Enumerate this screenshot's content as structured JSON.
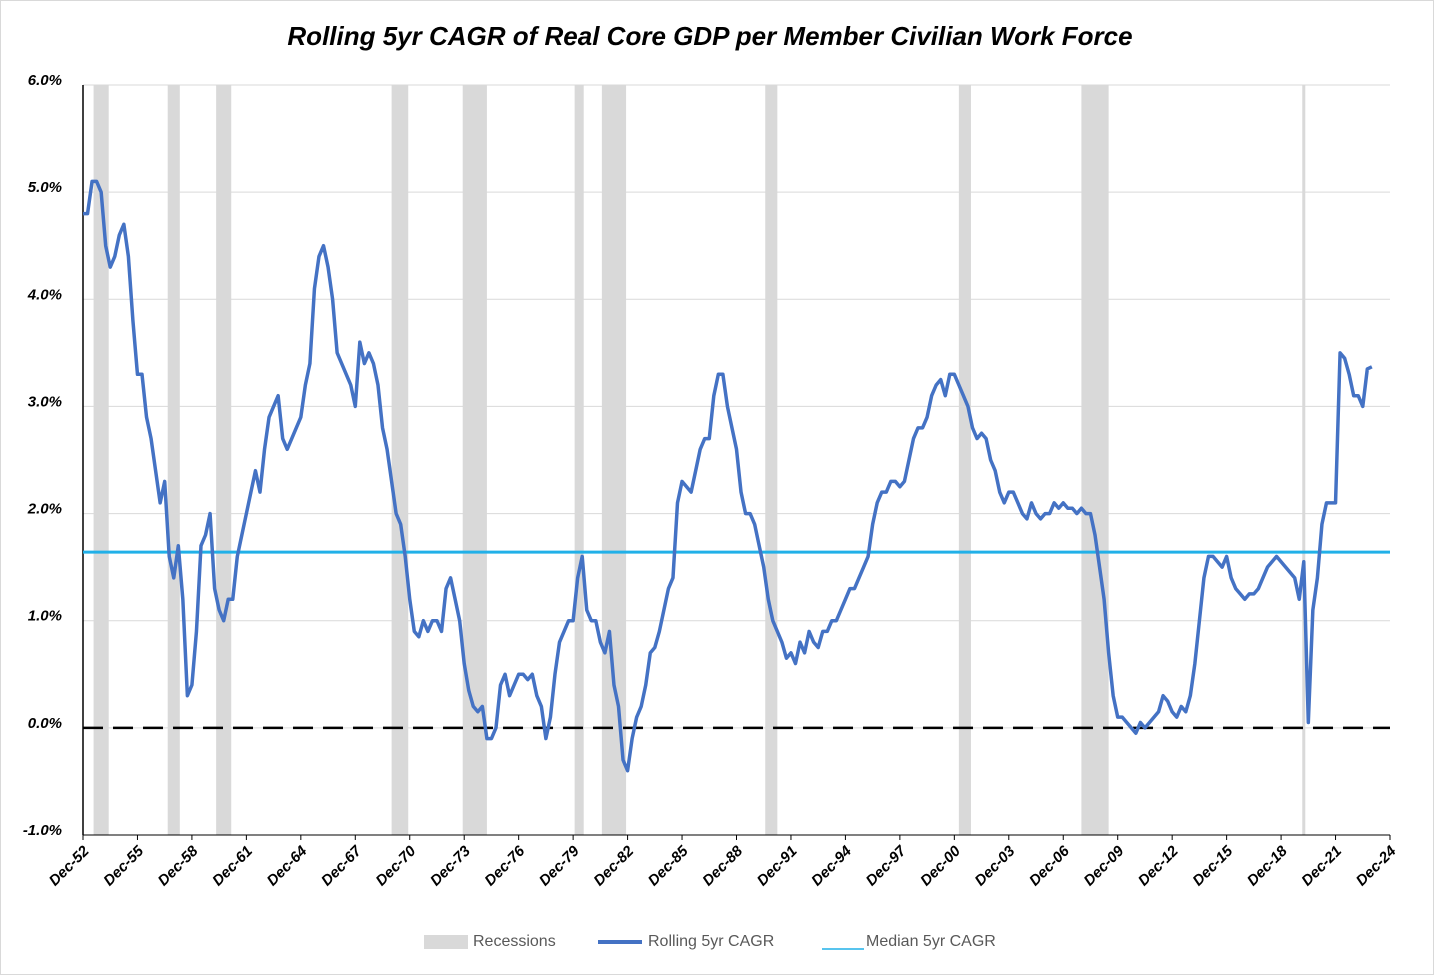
{
  "chart_data": {
    "type": "line",
    "title": "Rolling 5yr CAGR of Real Core GDP per Member Civilian Work Force",
    "x": [
      "Dec-52",
      "Mar-53",
      "Jun-53",
      "Sep-53",
      "Dec-53",
      "Mar-54",
      "Jun-54",
      "Sep-54",
      "Dec-54",
      "Mar-55",
      "Jun-55",
      "Sep-55",
      "Dec-55",
      "Mar-56",
      "Jun-56",
      "Sep-56",
      "Dec-56",
      "Mar-57",
      "Jun-57",
      "Sep-57",
      "Dec-57",
      "Mar-58",
      "Jun-58",
      "Sep-58",
      "Dec-58",
      "Mar-59",
      "Jun-59",
      "Sep-59",
      "Dec-59",
      "Mar-60",
      "Jun-60",
      "Sep-60",
      "Dec-60",
      "Mar-61",
      "Jun-61",
      "Sep-61",
      "Dec-61",
      "Mar-62",
      "Jun-62",
      "Sep-62",
      "Dec-62",
      "Mar-63",
      "Jun-63",
      "Sep-63",
      "Dec-63",
      "Mar-64",
      "Jun-64",
      "Sep-64",
      "Dec-64",
      "Mar-65",
      "Jun-65",
      "Sep-65",
      "Dec-65",
      "Mar-66",
      "Jun-66",
      "Sep-66",
      "Dec-66",
      "Mar-67",
      "Jun-67",
      "Sep-67",
      "Dec-67",
      "Mar-68",
      "Jun-68",
      "Sep-68",
      "Dec-68",
      "Mar-69",
      "Jun-69",
      "Sep-69",
      "Dec-69",
      "Mar-70",
      "Jun-70",
      "Sep-70",
      "Dec-70",
      "Mar-71",
      "Jun-71",
      "Sep-71",
      "Dec-71",
      "Mar-72",
      "Jun-72",
      "Sep-72",
      "Dec-72",
      "Mar-73",
      "Jun-73",
      "Sep-73",
      "Dec-73",
      "Mar-74",
      "Jun-74",
      "Sep-74",
      "Dec-74",
      "Mar-75",
      "Jun-75",
      "Sep-75",
      "Dec-75",
      "Mar-76",
      "Jun-76",
      "Sep-76",
      "Dec-76",
      "Mar-77",
      "Jun-77",
      "Sep-77",
      "Dec-77",
      "Mar-78",
      "Jun-78",
      "Sep-78",
      "Dec-78",
      "Mar-79",
      "Jun-79",
      "Sep-79",
      "Dec-79",
      "Mar-80",
      "Jun-80",
      "Sep-80",
      "Dec-80",
      "Mar-81",
      "Jun-81",
      "Sep-81",
      "Dec-81",
      "Mar-82",
      "Jun-82",
      "Sep-82",
      "Dec-82",
      "Mar-83",
      "Jun-83",
      "Sep-83",
      "Dec-83",
      "Mar-84",
      "Jun-84",
      "Sep-84",
      "Dec-84",
      "Mar-85",
      "Jun-85",
      "Sep-85",
      "Dec-85",
      "Mar-86",
      "Jun-86",
      "Sep-86",
      "Dec-86",
      "Mar-87",
      "Jun-87",
      "Sep-87",
      "Dec-87",
      "Mar-88",
      "Jun-88",
      "Sep-88",
      "Dec-88",
      "Mar-89",
      "Jun-89",
      "Sep-89",
      "Dec-89",
      "Mar-90",
      "Jun-90",
      "Sep-90",
      "Dec-90",
      "Mar-91",
      "Jun-91",
      "Sep-91",
      "Dec-91",
      "Mar-92",
      "Jun-92",
      "Sep-92",
      "Dec-92",
      "Mar-93",
      "Jun-93",
      "Sep-93",
      "Dec-93",
      "Mar-94",
      "Jun-94",
      "Sep-94",
      "Dec-94",
      "Mar-95",
      "Jun-95",
      "Sep-95",
      "Dec-95",
      "Mar-96",
      "Jun-96",
      "Sep-96",
      "Dec-96",
      "Mar-97",
      "Jun-97",
      "Sep-97",
      "Dec-97",
      "Mar-98",
      "Jun-98",
      "Sep-98",
      "Dec-98",
      "Mar-99",
      "Jun-99",
      "Sep-99",
      "Dec-99",
      "Mar-00",
      "Jun-00",
      "Sep-00",
      "Dec-00",
      "Mar-01",
      "Jun-01",
      "Sep-01",
      "Dec-01",
      "Mar-02",
      "Jun-02",
      "Sep-02",
      "Dec-02",
      "Mar-03",
      "Jun-03",
      "Sep-03",
      "Dec-03",
      "Mar-04",
      "Jun-04",
      "Sep-04",
      "Dec-04",
      "Mar-05",
      "Jun-05",
      "Sep-05",
      "Dec-05",
      "Mar-06",
      "Jun-06",
      "Sep-06",
      "Dec-06",
      "Mar-07",
      "Jun-07",
      "Sep-07",
      "Dec-07",
      "Mar-08",
      "Jun-08",
      "Sep-08",
      "Dec-08",
      "Mar-09",
      "Jun-09",
      "Sep-09",
      "Dec-09",
      "Mar-10",
      "Jun-10",
      "Sep-10",
      "Dec-10",
      "Mar-11",
      "Jun-11",
      "Sep-11",
      "Dec-11",
      "Mar-12",
      "Jun-12",
      "Sep-12",
      "Dec-12",
      "Mar-13",
      "Jun-13",
      "Sep-13",
      "Dec-13",
      "Mar-14",
      "Jun-14",
      "Sep-14",
      "Dec-14",
      "Mar-15",
      "Jun-15",
      "Sep-15",
      "Dec-15",
      "Mar-16",
      "Jun-16",
      "Sep-16",
      "Dec-16",
      "Mar-17",
      "Jun-17",
      "Sep-17",
      "Dec-17",
      "Mar-18",
      "Jun-18",
      "Sep-18",
      "Dec-18",
      "Mar-19",
      "Jun-19",
      "Sep-19",
      "Dec-19",
      "Mar-20",
      "Jun-20",
      "Sep-20",
      "Dec-20",
      "Mar-21",
      "Jun-21",
      "Sep-21",
      "Dec-21",
      "Mar-22",
      "Jun-22",
      "Sep-22",
      "Dec-22",
      "Mar-23",
      "Jun-23",
      "Sep-23",
      "Dec-23"
    ],
    "series": [
      {
        "name": "Rolling 5yr CAGR",
        "color": "#4472c4",
        "values": [
          4.8,
          4.8,
          5.1,
          5.1,
          5.0,
          4.5,
          4.3,
          4.4,
          4.6,
          4.7,
          4.4,
          3.8,
          3.3,
          3.3,
          2.9,
          2.7,
          2.4,
          2.1,
          2.3,
          1.6,
          1.4,
          1.7,
          1.2,
          0.3,
          0.4,
          0.9,
          1.7,
          1.8,
          2.0,
          1.3,
          1.1,
          1.0,
          1.2,
          1.2,
          1.6,
          1.8,
          2.0,
          2.2,
          2.4,
          2.2,
          2.6,
          2.9,
          3.0,
          3.1,
          2.7,
          2.6,
          2.7,
          2.8,
          2.9,
          3.2,
          3.4,
          4.1,
          4.4,
          4.5,
          4.3,
          4.0,
          3.5,
          3.4,
          3.3,
          3.2,
          3.0,
          3.6,
          3.4,
          3.5,
          3.4,
          3.2,
          2.8,
          2.6,
          2.3,
          2.0,
          1.9,
          1.6,
          1.2,
          0.9,
          0.85,
          1.0,
          0.9,
          1.0,
          1.0,
          0.9,
          1.3,
          1.4,
          1.2,
          1.0,
          0.6,
          0.35,
          0.2,
          0.15,
          0.2,
          -0.1,
          -0.1,
          0.0,
          0.4,
          0.5,
          0.3,
          0.4,
          0.5,
          0.5,
          0.45,
          0.5,
          0.3,
          0.2,
          -0.1,
          0.1,
          0.5,
          0.8,
          0.9,
          1.0,
          1.0,
          1.4,
          1.6,
          1.1,
          1.0,
          1.0,
          0.8,
          0.7,
          0.9,
          0.4,
          0.2,
          -0.3,
          -0.4,
          -0.1,
          0.1,
          0.2,
          0.4,
          0.7,
          0.75,
          0.9,
          1.1,
          1.3,
          1.4,
          2.1,
          2.3,
          2.25,
          2.2,
          2.4,
          2.6,
          2.7,
          2.7,
          3.1,
          3.3,
          3.3,
          3.0,
          2.8,
          2.6,
          2.2,
          2.0,
          2.0,
          1.9,
          1.7,
          1.5,
          1.2,
          1.0,
          0.9,
          0.8,
          0.65,
          0.7,
          0.6,
          0.8,
          0.7,
          0.9,
          0.8,
          0.75,
          0.9,
          0.9,
          1.0,
          1.0,
          1.1,
          1.2,
          1.3,
          1.3,
          1.4,
          1.5,
          1.6,
          1.9,
          2.1,
          2.2,
          2.2,
          2.3,
          2.3,
          2.25,
          2.3,
          2.5,
          2.7,
          2.8,
          2.8,
          2.9,
          3.1,
          3.2,
          3.25,
          3.1,
          3.3,
          3.3,
          3.2,
          3.1,
          3.0,
          2.8,
          2.7,
          2.75,
          2.7,
          2.5,
          2.4,
          2.2,
          2.1,
          2.2,
          2.2,
          2.1,
          2.0,
          1.95,
          2.1,
          2.0,
          1.95,
          2.0,
          2.0,
          2.1,
          2.05,
          2.1,
          2.05,
          2.05,
          2.0,
          2.05,
          2.0,
          2.0,
          1.8,
          1.5,
          1.2,
          0.7,
          0.3,
          0.1,
          0.1,
          0.05,
          0.0,
          -0.05,
          0.05,
          0.0,
          0.05,
          0.1,
          0.15,
          0.3,
          0.25,
          0.15,
          0.1,
          0.2,
          0.15,
          0.3,
          0.6,
          1.0,
          1.4,
          1.6,
          1.6,
          1.55,
          1.5,
          1.6,
          1.4,
          1.3,
          1.25,
          1.2,
          1.25,
          1.25,
          1.3,
          1.4,
          1.5,
          1.55,
          1.6,
          1.55,
          1.5,
          1.45,
          1.4,
          1.2,
          1.55,
          0.05,
          1.1,
          1.4,
          1.9,
          2.1,
          2.1,
          2.1,
          3.5,
          3.45,
          3.3,
          3.1,
          3.1,
          3.0,
          3.35,
          3.37
        ]
      }
    ],
    "median": {
      "name": "Median 5yr CAGR",
      "color": "#21b0e8",
      "value": 1.64
    },
    "zero_line": 0,
    "recessions": {
      "name": "Recessions",
      "color": "#d9d9d9",
      "periods": [
        [
          "Jul-53",
          "May-54"
        ],
        [
          "Aug-57",
          "Apr-58"
        ],
        [
          "Apr-60",
          "Feb-61"
        ],
        [
          "Dec-69",
          "Nov-70"
        ],
        [
          "Nov-73",
          "Mar-75"
        ],
        [
          "Jan-80",
          "Jul-80"
        ],
        [
          "Jul-81",
          "Nov-82"
        ],
        [
          "Jul-90",
          "Mar-91"
        ],
        [
          "Mar-01",
          "Nov-01"
        ],
        [
          "Dec-07",
          "Jun-09"
        ],
        [
          "Feb-20",
          "Apr-20"
        ]
      ]
    },
    "xlim": [
      "Dec-52",
      "Dec-24"
    ],
    "xticks": [
      "Dec-52",
      "Dec-55",
      "Dec-58",
      "Dec-61",
      "Dec-64",
      "Dec-67",
      "Dec-70",
      "Dec-73",
      "Dec-76",
      "Dec-79",
      "Dec-82",
      "Dec-85",
      "Dec-88",
      "Dec-91",
      "Dec-94",
      "Dec-97",
      "Dec-00",
      "Dec-03",
      "Dec-06",
      "Dec-09",
      "Dec-12",
      "Dec-15",
      "Dec-18",
      "Dec-21",
      "Dec-24"
    ],
    "ylim": [
      -1,
      6
    ],
    "yticks": [
      {
        "value": -1,
        "label": "-1.0%"
      },
      {
        "value": 0,
        "label": "0.0%"
      },
      {
        "value": 1,
        "label": "1.0%"
      },
      {
        "value": 2,
        "label": "2.0%"
      },
      {
        "value": 3,
        "label": "3.0%"
      },
      {
        "value": 4,
        "label": "4.0%"
      },
      {
        "value": 5,
        "label": "5.0%"
      },
      {
        "value": 6,
        "label": "6.0%"
      }
    ],
    "grid": true
  }
}
